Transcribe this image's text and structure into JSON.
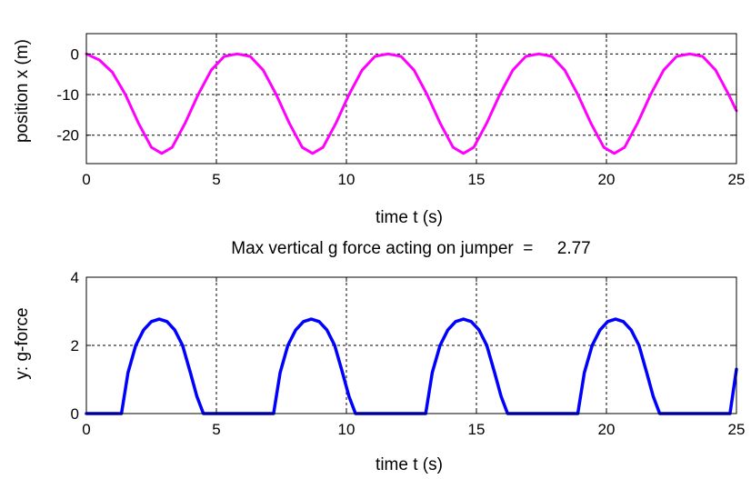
{
  "chart_data": [
    {
      "type": "line",
      "title": "",
      "xlabel": "time  t  (s)",
      "ylabel": "position  x  (m)",
      "xlim": [
        0,
        25
      ],
      "ylim": [
        -27,
        5
      ],
      "xticks": [
        0,
        5,
        10,
        15,
        20,
        25
      ],
      "yticks": [
        0,
        -10,
        -20
      ],
      "grid": true,
      "series": [
        {
          "color": "#ff00ff",
          "x": [
            0,
            0.5,
            1.0,
            1.5,
            2.0,
            2.5,
            2.9,
            3.3,
            3.8,
            4.3,
            4.8,
            5.3,
            5.8,
            6.3,
            6.8,
            7.3,
            7.8,
            8.3,
            8.7,
            9.1,
            9.6,
            10.1,
            10.6,
            11.1,
            11.6,
            12.1,
            12.6,
            13.1,
            13.6,
            14.1,
            14.5,
            14.9,
            15.4,
            15.9,
            16.4,
            16.9,
            17.4,
            17.9,
            18.4,
            18.9,
            19.4,
            19.9,
            20.3,
            20.7,
            21.2,
            21.7,
            22.2,
            22.7,
            23.2,
            23.7,
            24.2,
            24.7,
            25.0
          ],
          "y": [
            0,
            -1.5,
            -4.5,
            -10,
            -17,
            -23,
            -24.5,
            -23,
            -17,
            -10,
            -4,
            -0.6,
            0,
            -0.6,
            -4,
            -10,
            -17,
            -23,
            -24.5,
            -23,
            -17,
            -10,
            -4,
            -0.6,
            0,
            -0.6,
            -4,
            -10,
            -17,
            -23,
            -24.5,
            -23,
            -17,
            -10,
            -4,
            -0.6,
            0,
            -0.6,
            -4,
            -10,
            -17,
            -23,
            -24.5,
            -23,
            -17,
            -10,
            -4,
            -0.6,
            0,
            -0.6,
            -4,
            -10,
            -14
          ]
        }
      ]
    },
    {
      "type": "line",
      "title": "Max vertical g force acting on jumper  =     2.77",
      "xlabel": "time  t  (s)",
      "ylabel": "y: g-force",
      "xlim": [
        0,
        25
      ],
      "ylim": [
        0,
        4
      ],
      "xticks": [
        0,
        5,
        10,
        15,
        20,
        25
      ],
      "yticks": [
        0,
        2,
        4
      ],
      "grid": true,
      "series": [
        {
          "color": "#0000ff",
          "x": [
            0,
            1.35,
            1.6,
            1.9,
            2.2,
            2.5,
            2.8,
            3.1,
            3.4,
            3.7,
            4.0,
            4.25,
            4.5,
            7.2,
            7.45,
            7.75,
            8.05,
            8.35,
            8.65,
            8.95,
            9.25,
            9.55,
            9.85,
            10.1,
            10.35,
            13.05,
            13.3,
            13.6,
            13.9,
            14.2,
            14.5,
            14.8,
            15.1,
            15.4,
            15.7,
            15.95,
            16.2,
            18.9,
            19.15,
            19.45,
            19.75,
            20.05,
            20.35,
            20.65,
            20.95,
            21.25,
            21.55,
            21.8,
            22.05,
            24.75,
            25.0
          ],
          "y": [
            0,
            0,
            1.2,
            2.0,
            2.45,
            2.7,
            2.77,
            2.7,
            2.45,
            2.0,
            1.2,
            0.5,
            0,
            0,
            1.2,
            2.0,
            2.45,
            2.7,
            2.77,
            2.7,
            2.45,
            2.0,
            1.2,
            0.5,
            0,
            0,
            1.2,
            2.0,
            2.45,
            2.7,
            2.77,
            2.7,
            2.45,
            2.0,
            1.2,
            0.5,
            0,
            0,
            1.2,
            2.0,
            2.45,
            2.7,
            2.77,
            2.7,
            2.45,
            2.0,
            1.2,
            0.5,
            0,
            0,
            1.3
          ]
        }
      ]
    }
  ]
}
